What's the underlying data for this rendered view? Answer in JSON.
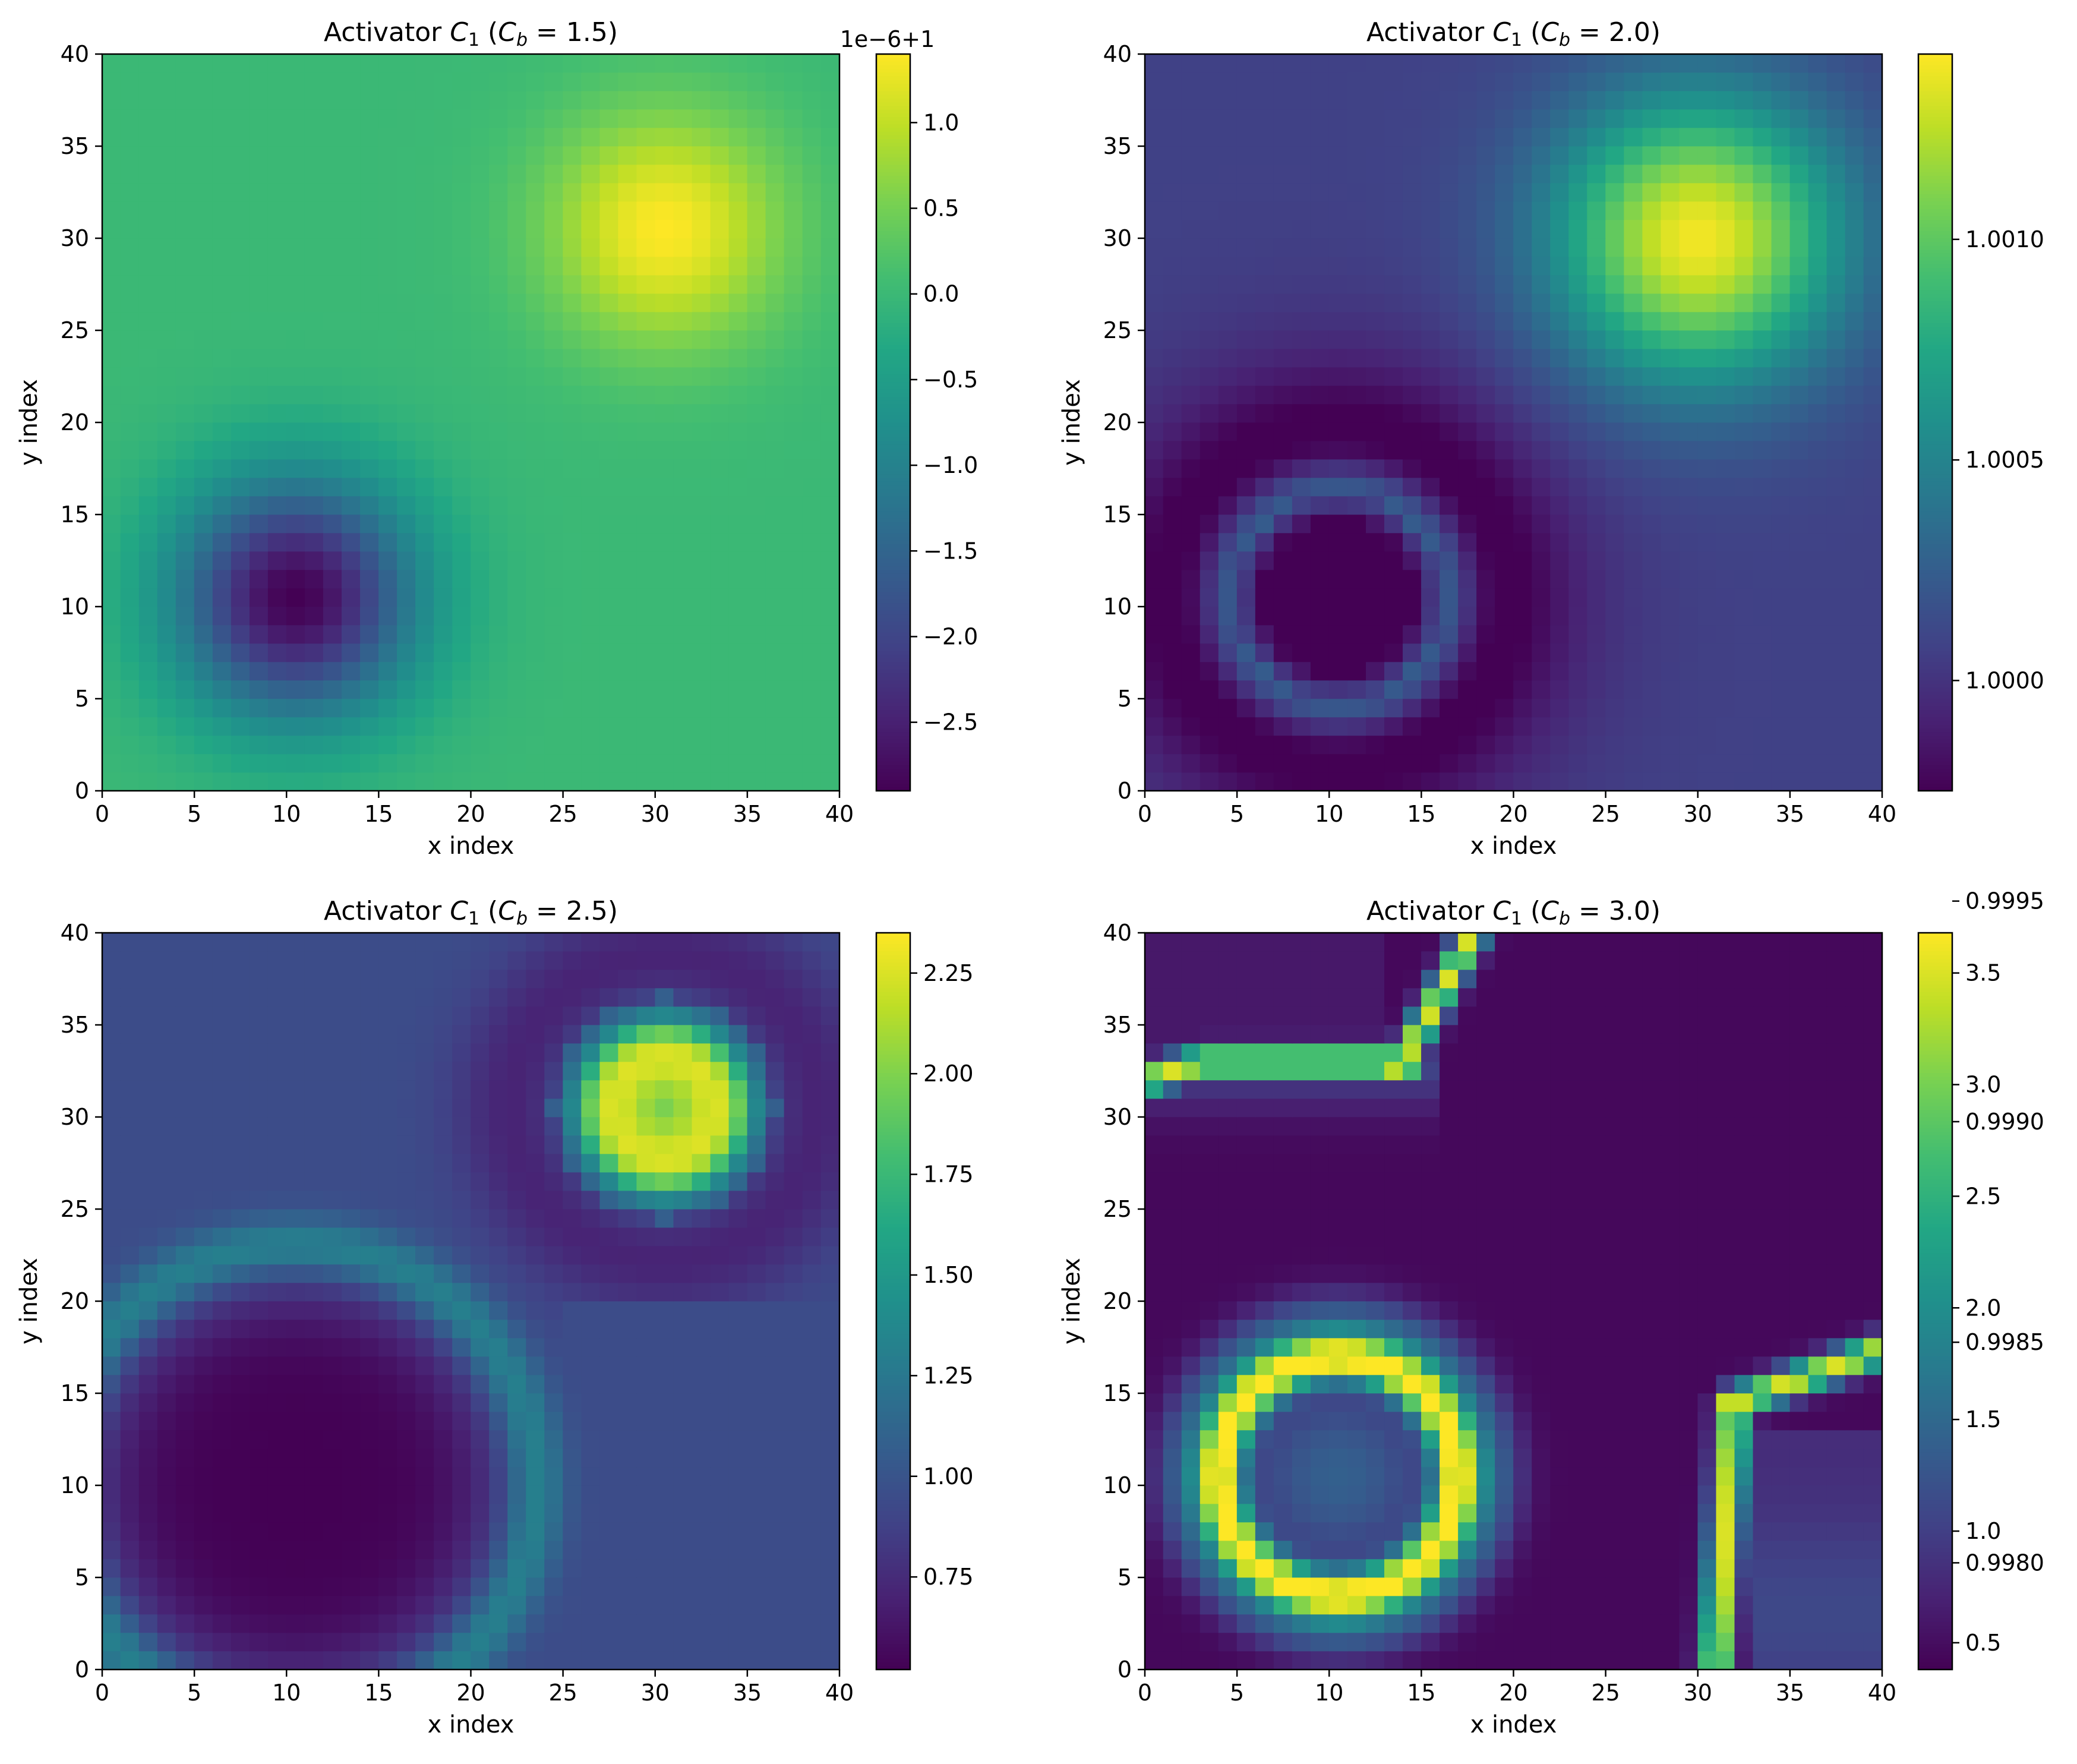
{
  "figure": {
    "x_label": "x index",
    "y_label": "y index"
  },
  "colormap": "viridis",
  "chart_data": [
    {
      "type": "heatmap",
      "title": "Activator C₁ (C_b = 1.5)",
      "title_prefix": "Activator ",
      "title_var": "C",
      "title_var_sub": "1",
      "title_param": "C",
      "title_param_sub": "b",
      "title_value": "1.5",
      "xlabel": "x index",
      "ylabel": "y index",
      "xlim": [
        0,
        40
      ],
      "ylim": [
        0,
        40
      ],
      "x_ticks": [
        "0",
        "5",
        "10",
        "15",
        "20",
        "25",
        "30",
        "35",
        "40"
      ],
      "y_ticks": [
        "0",
        "5",
        "10",
        "15",
        "20",
        "25",
        "30",
        "35",
        "40"
      ],
      "colorbar": {
        "offset_label": "1e−6+1",
        "range": [
          -2.9,
          1.4
        ],
        "tick_values": [
          1.0,
          0.5,
          0.0,
          -0.5,
          -1.0,
          -1.5,
          -2.0,
          -2.5
        ],
        "tick_labels": [
          "1.0",
          "0.5",
          "0.0",
          "−0.5",
          "−1.0",
          "−1.5",
          "−2.0",
          "−2.5"
        ]
      },
      "features": {
        "background": 0.0,
        "spots": [
          {
            "kind": "peak",
            "x": 30.5,
            "y": 30.5,
            "amplitude": 1.4,
            "sigma": 4.5
          },
          {
            "kind": "trough",
            "x": 10.5,
            "y": 10.5,
            "amplitude": -2.9,
            "sigma": 4.5
          }
        ]
      }
    },
    {
      "type": "heatmap",
      "title": "Activator C₁ (C_b = 2.0)",
      "title_prefix": "Activator ",
      "title_var": "C",
      "title_var_sub": "1",
      "title_param": "C",
      "title_param_sub": "b",
      "title_value": "2.0",
      "xlabel": "x index",
      "ylabel": "y index",
      "xlim": [
        0,
        40
      ],
      "ylim": [
        0,
        40
      ],
      "x_ticks": [
        "0",
        "5",
        "10",
        "15",
        "20",
        "25",
        "30",
        "35",
        "40"
      ],
      "y_ticks": [
        "0",
        "5",
        "10",
        "15",
        "20",
        "25",
        "30",
        "35",
        "40"
      ],
      "colorbar": {
        "offset_label": "",
        "range": [
          0.99975,
          1.00142
        ],
        "tick_values": [
          1.001,
          1.0005,
          1.0,
          0.9995,
          0.999,
          0.9985,
          0.998
        ],
        "tick_labels": [
          "1.0010",
          "1.0005",
          "1.0000",
          "0.9995",
          "0.9990",
          "0.9985",
          "0.9980"
        ]
      },
      "features": {
        "background": 1.0001,
        "spots": [
          {
            "kind": "peak",
            "x": 30,
            "y": 30,
            "amplitude": 1.00142,
            "sigma": 5.5
          },
          {
            "kind": "ring-trough",
            "x": 10.5,
            "y": 10.5,
            "center": 0.9989,
            "ring": 0.99975,
            "ring_radius": 5.5
          }
        ]
      }
    },
    {
      "type": "heatmap",
      "title": "Activator C₁ (C_b = 2.5)",
      "title_prefix": "Activator ",
      "title_var": "C",
      "title_var_sub": "1",
      "title_param": "C",
      "title_param_sub": "b",
      "title_value": "2.5",
      "xlabel": "x index",
      "ylabel": "y index",
      "xlim": [
        0,
        40
      ],
      "ylim": [
        0,
        40
      ],
      "x_ticks": [
        "0",
        "5",
        "10",
        "15",
        "20",
        "25",
        "30",
        "35",
        "40"
      ],
      "y_ticks": [
        "0",
        "5",
        "10",
        "15",
        "20",
        "25",
        "30",
        "35",
        "40"
      ],
      "colorbar": {
        "offset_label": "",
        "range": [
          0.52,
          2.35
        ],
        "tick_values": [
          2.25,
          2.0,
          1.75,
          1.5,
          1.25,
          1.0,
          0.75
        ],
        "tick_labels": [
          "2.25",
          "2.00",
          "1.75",
          "1.50",
          "1.25",
          "1.00",
          "0.75"
        ]
      },
      "features": {
        "background": 0.95,
        "spots": [
          {
            "kind": "ring-peak",
            "x": 30.5,
            "y": 30.5,
            "center": 1.95,
            "ring": 2.35,
            "ring_radius": 3.5
          },
          {
            "kind": "trough-with-halo",
            "x": 10.5,
            "y": 10.0,
            "center": 0.52,
            "halo": 1.35,
            "halo_radius": 13
          }
        ]
      }
    },
    {
      "type": "heatmap",
      "title": "Activator C₁ (C_b = 3.0)",
      "title_prefix": "Activator ",
      "title_var": "C",
      "title_var_sub": "1",
      "title_param": "C",
      "title_param_sub": "b",
      "title_value": "3.0",
      "xlabel": "x index",
      "ylabel": "y index",
      "xlim": [
        0,
        40
      ],
      "ylim": [
        0,
        40
      ],
      "x_ticks": [
        "0",
        "5",
        "10",
        "15",
        "20",
        "25",
        "30",
        "35",
        "40"
      ],
      "y_ticks": [
        "0",
        "5",
        "10",
        "15",
        "20",
        "25",
        "30",
        "35",
        "40"
      ],
      "colorbar": {
        "offset_label": "",
        "range": [
          0.38,
          3.68
        ],
        "tick_values": [
          3.5,
          3.0,
          2.5,
          2.0,
          1.5,
          1.0,
          0.5
        ],
        "tick_labels": [
          "3.5",
          "3.0",
          "2.5",
          "2.0",
          "1.5",
          "1.0",
          "0.5"
        ]
      },
      "features": {
        "background": 0.45,
        "spots": [
          {
            "kind": "ring",
            "x": 10.5,
            "y": 10.5,
            "center": 1.5,
            "ring": 3.68,
            "ring_radius": 6.5
          },
          {
            "kind": "front-upper",
            "corner_x": 14,
            "corner_y": 33,
            "value": 3.5
          },
          {
            "kind": "front-lower",
            "corner_x": 32,
            "corner_y": 14.5,
            "value": 3.5
          }
        ]
      }
    }
  ]
}
